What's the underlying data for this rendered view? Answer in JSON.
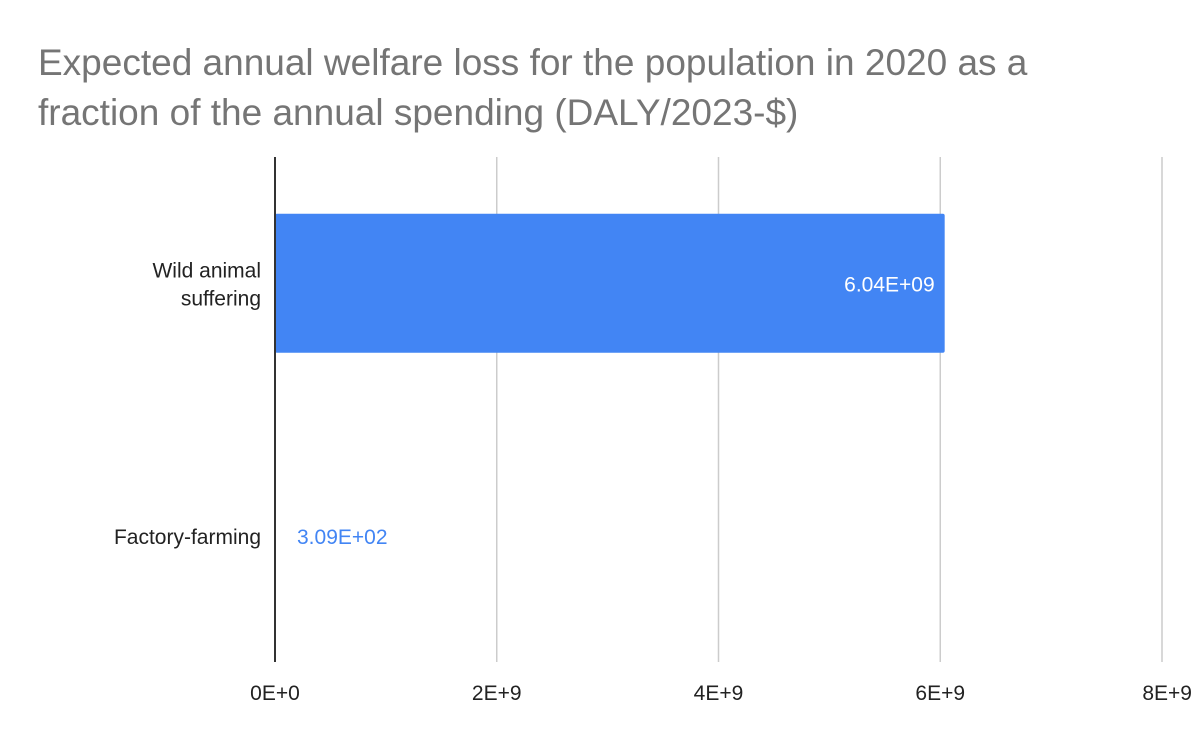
{
  "chart_data": {
    "type": "bar",
    "orientation": "horizontal",
    "title": "Expected annual welfare loss for the population in 2020 as a fraction of the annual spending (DALY/2023-$)",
    "categories": [
      [
        "Wild animal",
        "suffering"
      ],
      [
        "Factory-farming"
      ]
    ],
    "values": [
      6040000000,
      309
    ],
    "data_labels": [
      "6.04E+09",
      "3.09E+02"
    ],
    "xlim": [
      0,
      8000000000
    ],
    "xticks": [
      0,
      2000000000,
      4000000000,
      6000000000,
      8000000000
    ],
    "xtick_labels": [
      "0E+0",
      "2E+9",
      "4E+9",
      "6E+9",
      "8E+9"
    ],
    "xlabel": "",
    "ylabel": "",
    "grid": true,
    "legend": "none"
  },
  "colors": {
    "bar": "#4285f4",
    "title": "#757575",
    "grid": "#cccccc",
    "axis": "#333333",
    "text": "#222222",
    "label_inside": "#ffffff",
    "label_outside": "#4285f4"
  }
}
